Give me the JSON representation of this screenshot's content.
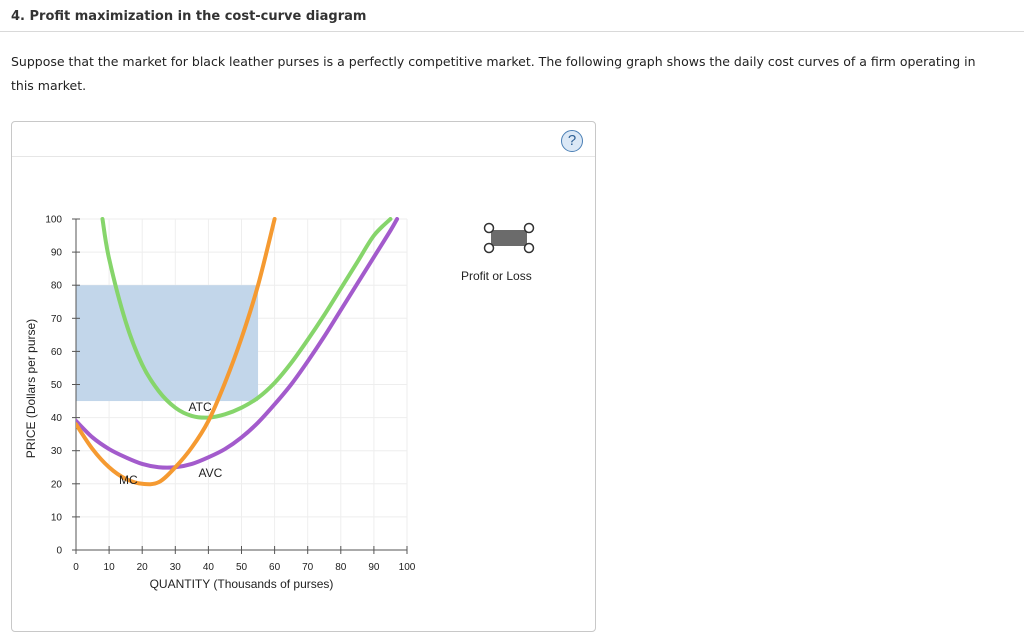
{
  "question": {
    "title": "4. Profit maximization in the cost-curve diagram",
    "text": "Suppose that the market for black leather purses is a perfectly competitive market. The following graph shows the daily cost curves of a firm operating in this market."
  },
  "help_button": {
    "label": "?"
  },
  "tool": {
    "label": "Profit or Loss",
    "icon": "profit-loss-rectangle-tool"
  },
  "colors": {
    "atc": "#86d56b",
    "avc": "#a35bcc",
    "mc": "#f59a31",
    "profit_area": "#c2d6ea",
    "grid": "#eeeeee"
  },
  "chart_data": {
    "type": "line",
    "xlabel": "QUANTITY (Thousands of purses)",
    "ylabel": "PRICE (Dollars per purse)",
    "xlim": [
      0,
      100
    ],
    "ylim": [
      0,
      100
    ],
    "xticks": [
      0,
      10,
      20,
      30,
      40,
      50,
      60,
      70,
      80,
      90,
      100
    ],
    "yticks": [
      0,
      10,
      20,
      30,
      40,
      50,
      60,
      70,
      80,
      90,
      100
    ],
    "grid": true,
    "series": [
      {
        "name": "MC",
        "color": "#f59a31",
        "x": [
          0,
          5,
          10,
          15,
          20,
          25,
          30,
          35,
          40,
          45,
          50,
          55,
          60
        ],
        "y": [
          38,
          30.5,
          25,
          21.5,
          20,
          20.5,
          25,
          31,
          39,
          50.5,
          64,
          80,
          100
        ]
      },
      {
        "name": "AVC",
        "color": "#a35bcc",
        "x": [
          0,
          5,
          10,
          15,
          20,
          25,
          30,
          35,
          40,
          45,
          50,
          55,
          60,
          65,
          70,
          75,
          80,
          85,
          90,
          95,
          97
        ],
        "y": [
          39,
          34,
          30.5,
          28,
          26,
          25,
          25,
          26,
          28,
          30.5,
          34,
          38.5,
          44,
          50,
          57,
          64.5,
          72.5,
          80.5,
          88.5,
          96.5,
          100
        ]
      },
      {
        "name": "ATC",
        "color": "#86d56b",
        "x": [
          8,
          10,
          15,
          20,
          25,
          30,
          35,
          40,
          45,
          50,
          55,
          60,
          65,
          70,
          75,
          80,
          85,
          90,
          95
        ],
        "y": [
          100,
          88,
          69,
          56,
          48,
          43,
          40.5,
          40,
          41,
          43,
          46,
          50.5,
          56.5,
          63.5,
          71,
          79,
          87,
          95,
          100
        ]
      }
    ],
    "curve_labels": [
      {
        "text": "MC",
        "x": 13,
        "y": 20
      },
      {
        "text": "AVC",
        "x": 37,
        "y": 22
      },
      {
        "text": "ATC",
        "x": 34,
        "y": 42
      }
    ],
    "profit_rectangle": {
      "x0": 0,
      "x1": 55,
      "y0": 45,
      "y1": 80
    }
  }
}
